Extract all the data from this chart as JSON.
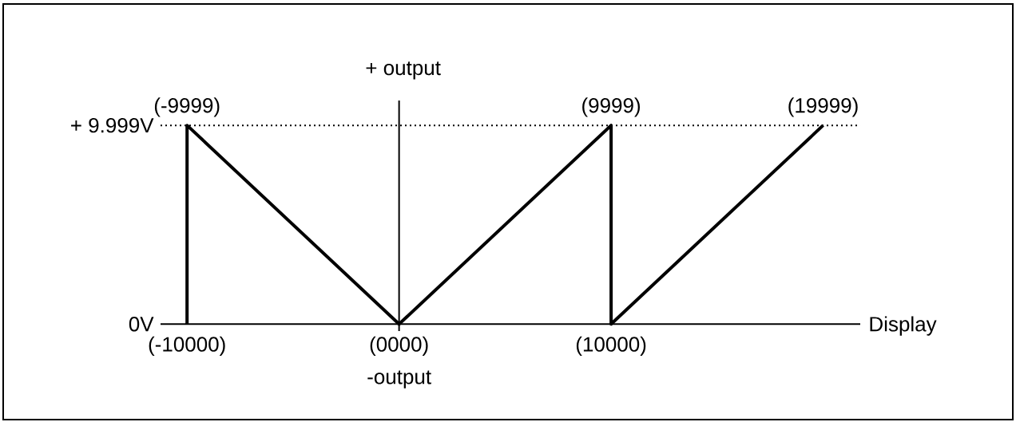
{
  "chart_data": {
    "type": "line",
    "x": [
      -10000,
      -9999,
      0,
      9999,
      10000,
      19999
    ],
    "values": [
      0,
      9.999,
      0,
      9.999,
      0,
      9.999
    ],
    "color": "#000000",
    "xlabel": "Display",
    "ylabel": "+ output",
    "xlim": [
      -11250,
      21750
    ],
    "ylim": [
      -0.35,
      11.25
    ],
    "xticks": [
      {
        "value": -10000,
        "label": "(-10000)"
      },
      {
        "value": 0,
        "label": "(0000)"
      },
      {
        "value": 10000,
        "label": "(10000)"
      }
    ],
    "yticks": [
      {
        "value": 0,
        "label": "0V"
      },
      {
        "value": 9.999,
        "label": "+ 9.999V"
      }
    ],
    "ref_lines": [
      {
        "axis": "y",
        "value": 9.999,
        "line_style": "dotted",
        "color": "#000000"
      }
    ],
    "annotations": [
      {
        "text": "(-9999)",
        "x": -9999,
        "y": 9.999
      },
      {
        "text": "(9999)",
        "x": 9999,
        "y": 9.999
      },
      {
        "text": "(19999)",
        "x": 19999,
        "y": 9.999
      },
      "-output"
    ]
  }
}
